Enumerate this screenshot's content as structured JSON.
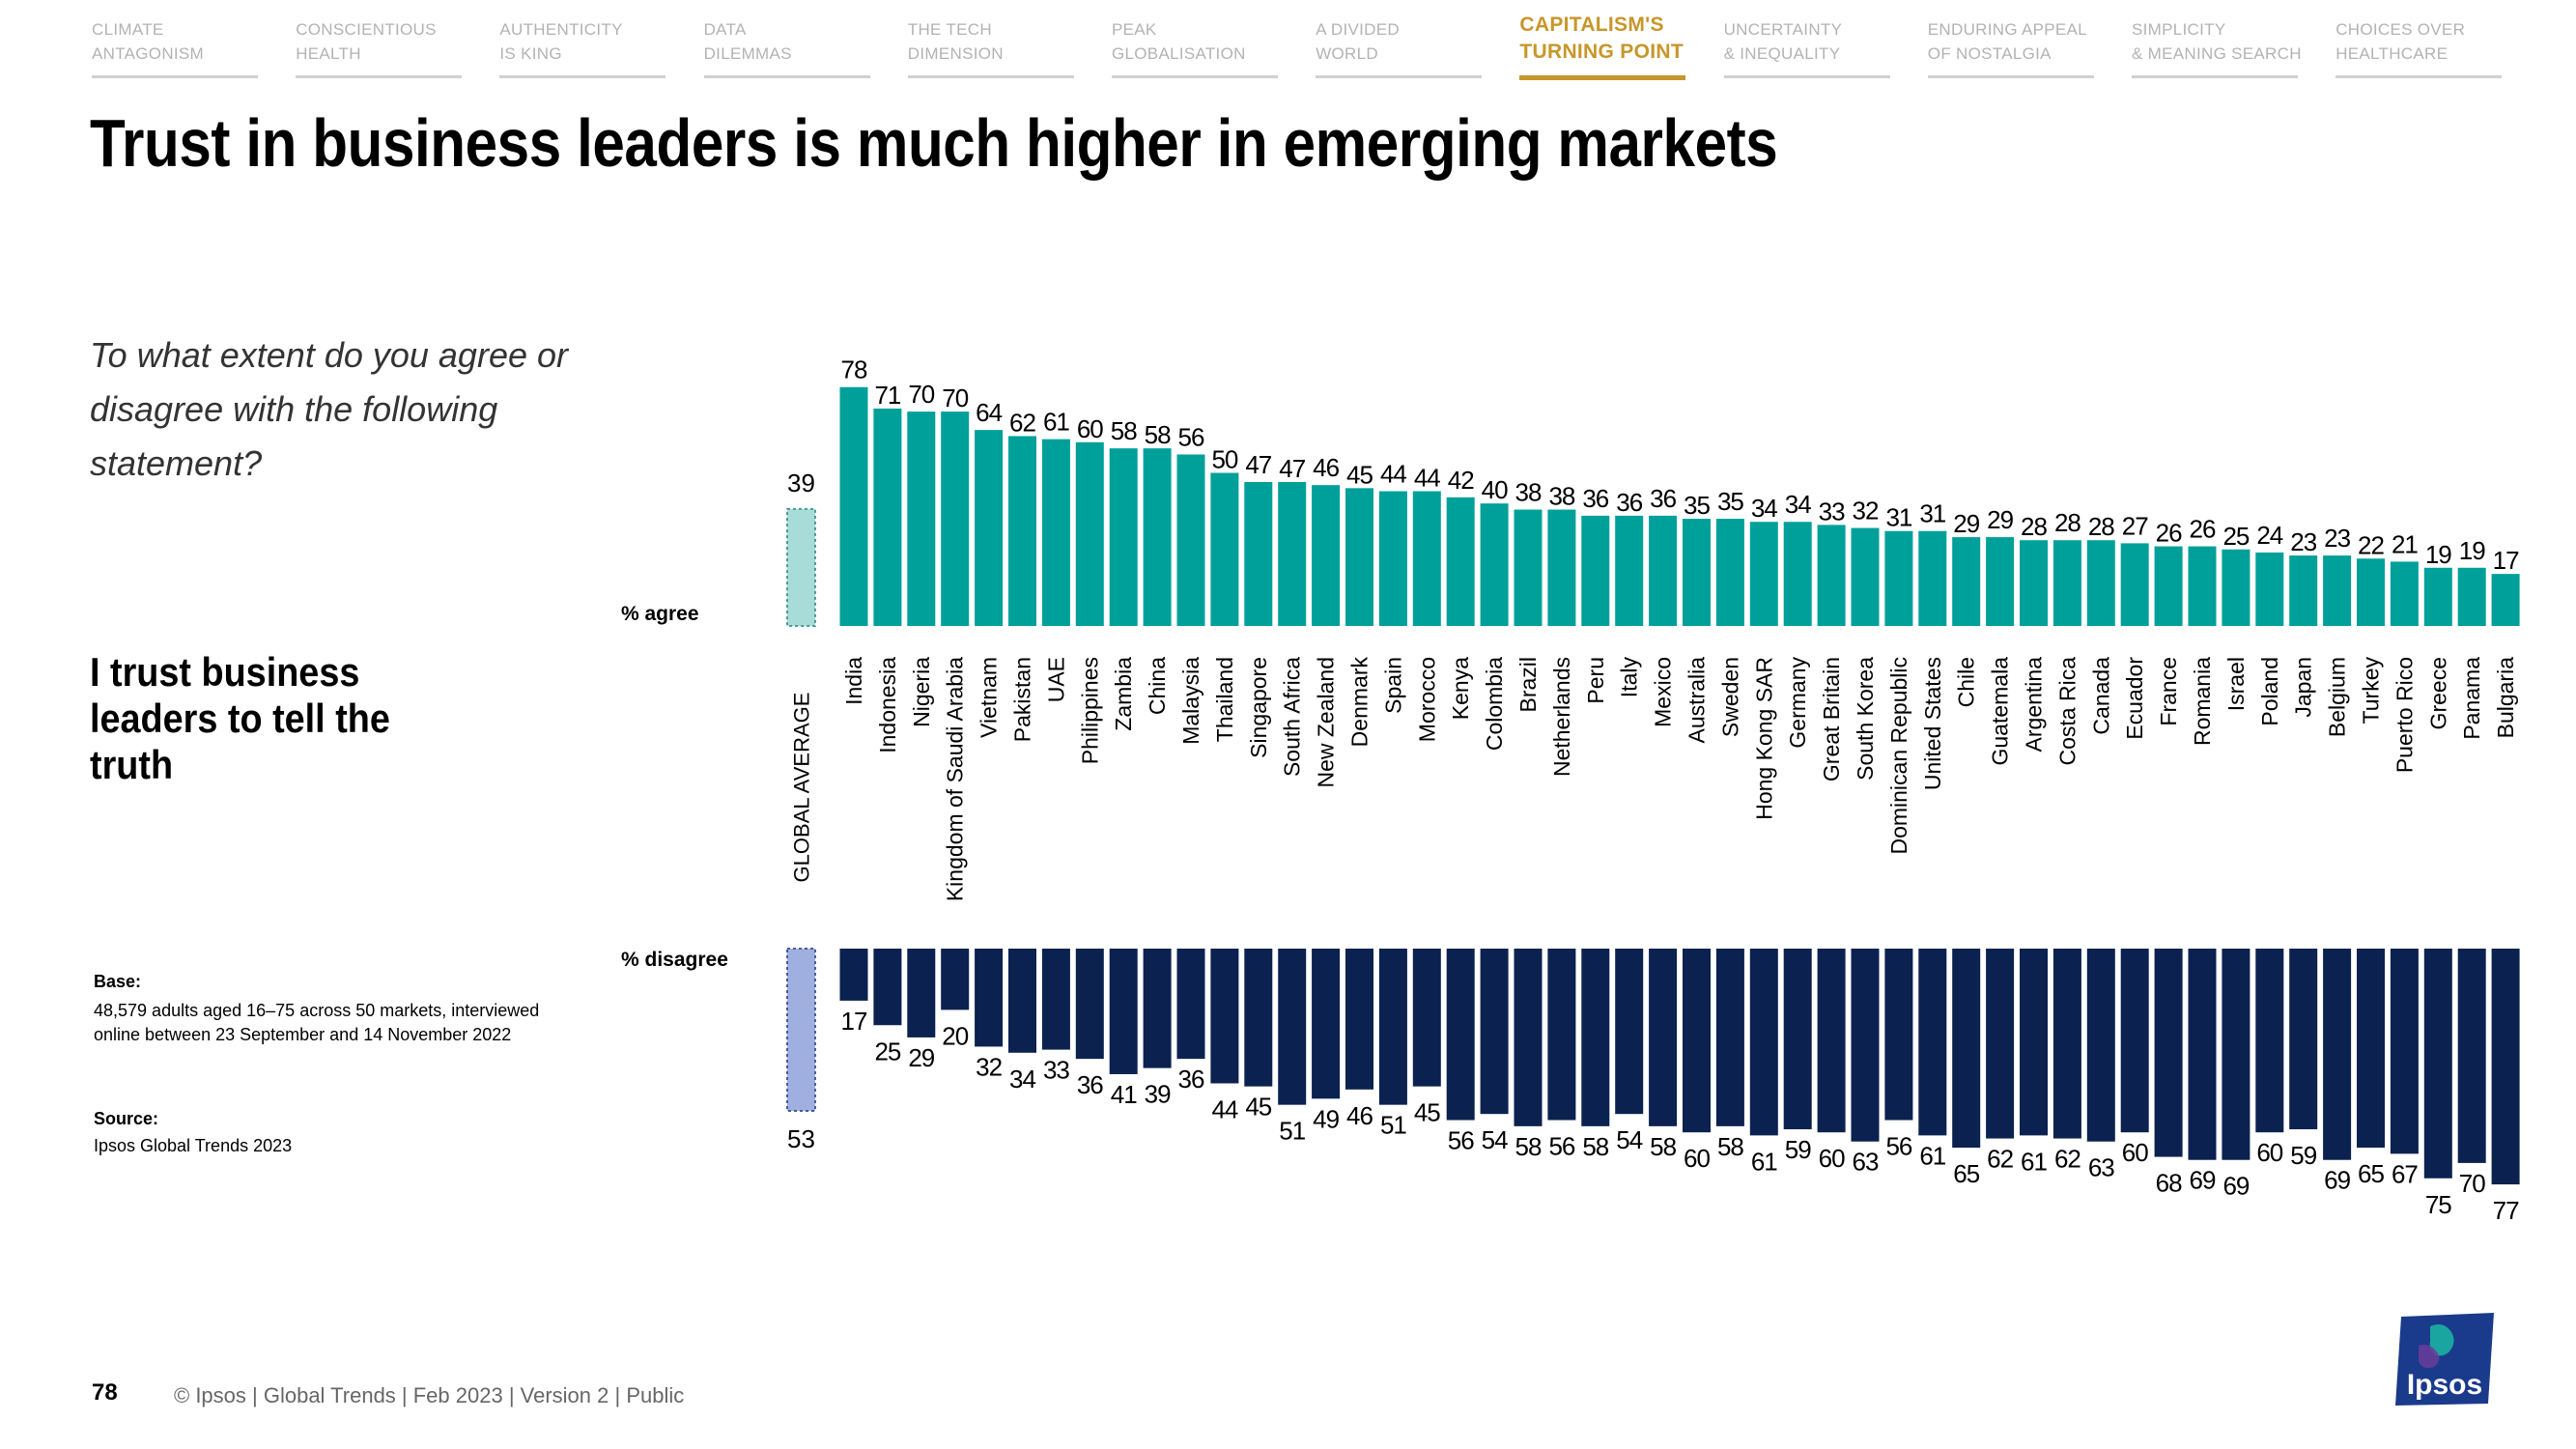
{
  "nav": {
    "items": [
      {
        "label": "CLIMATE\nANTAGONISM",
        "active": false
      },
      {
        "label": "CONSCIENTIOUS\nHEALTH",
        "active": false
      },
      {
        "label": "AUTHENTICITY\nIS KING",
        "active": false
      },
      {
        "label": "DATA\nDILEMMAS",
        "active": false
      },
      {
        "label": "THE TECH\nDIMENSION",
        "active": false
      },
      {
        "label": "PEAK\nGLOBALISATION",
        "active": false
      },
      {
        "label": "A DIVIDED\nWORLD",
        "active": false
      },
      {
        "label": "CAPITALISM'S\nTURNING POINT",
        "active": true
      },
      {
        "label": "UNCERTAINTY\n& INEQUALITY",
        "active": false
      },
      {
        "label": "ENDURING APPEAL\nOF NOSTALGIA",
        "active": false
      },
      {
        "label": "SIMPLICITY\n& MEANING SEARCH",
        "active": false
      },
      {
        "label": "CHOICES OVER\nHEALTHCARE",
        "active": false
      }
    ]
  },
  "title": "Trust in business leaders is much higher in emerging markets",
  "question": "To what extent do you agree or disagree with the following statement?",
  "statement": "I trust business leaders to tell the truth",
  "base": {
    "heading": "Base:",
    "text": "48,579 adults aged 16–75 across 50 markets, interviewed online between 23 September and 14 November 2022"
  },
  "source": {
    "heading": "Source:",
    "text": "Ipsos Global Trends 2023"
  },
  "footer": {
    "page": "78",
    "text": "© Ipsos | Global Trends | Feb 2023 | Version 2 | Public"
  },
  "logo": {
    "text": "Ipsos"
  },
  "colors": {
    "agree": "#00a09a",
    "disagree": "#0b2150",
    "avg_agree": "#a8dcd9",
    "avg_disagree": "#9fb0e0",
    "accent": "#c8962a"
  },
  "chart_data": {
    "type": "bar",
    "agree_label": "% agree",
    "disagree_label": "% disagree",
    "global_average": {
      "label": "GLOBAL AVERAGE",
      "agree": 39,
      "disagree": 53
    },
    "categories": [
      "India",
      "Indonesia",
      "Nigeria",
      "Kingdom of Saudi Arabia",
      "Vietnam",
      "Pakistan",
      "UAE",
      "Philippines",
      "Zambia",
      "China",
      "Malaysia",
      "Thailand",
      "Singapore",
      "South Africa",
      "New Zealand",
      "Denmark",
      "Spain",
      "Morocco",
      "Kenya",
      "Colombia",
      "Brazil",
      "Netherlands",
      "Peru",
      "Italy",
      "Mexico",
      "Australia",
      "Sweden",
      "Hong Kong SAR",
      "Germany",
      "Great Britain",
      "South Korea",
      "Dominican Republic",
      "United States",
      "Chile",
      "Guatemala",
      "Argentina",
      "Costa Rica",
      "Canada",
      "Ecuador",
      "France",
      "Romania",
      "Israel",
      "Poland",
      "Japan",
      "Belgium",
      "Turkey",
      "Puerto Rico",
      "Greece",
      "Panama",
      "Bulgaria"
    ],
    "series": [
      {
        "name": "% agree",
        "values": [
          78,
          71,
          70,
          70,
          64,
          62,
          61,
          60,
          58,
          58,
          56,
          50,
          47,
          47,
          46,
          45,
          44,
          44,
          42,
          40,
          38,
          38,
          36,
          36,
          36,
          35,
          35,
          34,
          34,
          33,
          32,
          31,
          31,
          29,
          29,
          28,
          28,
          28,
          27,
          26,
          26,
          25,
          24,
          23,
          23,
          22,
          21,
          19,
          19,
          17
        ]
      },
      {
        "name": "% disagree",
        "values": [
          17,
          25,
          29,
          20,
          32,
          34,
          33,
          36,
          41,
          39,
          36,
          44,
          45,
          51,
          49,
          46,
          51,
          45,
          56,
          54,
          58,
          56,
          58,
          54,
          58,
          60,
          58,
          61,
          59,
          60,
          63,
          56,
          61,
          65,
          62,
          61,
          62,
          63,
          60,
          68,
          69,
          69,
          60,
          59,
          69,
          65,
          67,
          75,
          70,
          77
        ]
      }
    ]
  }
}
